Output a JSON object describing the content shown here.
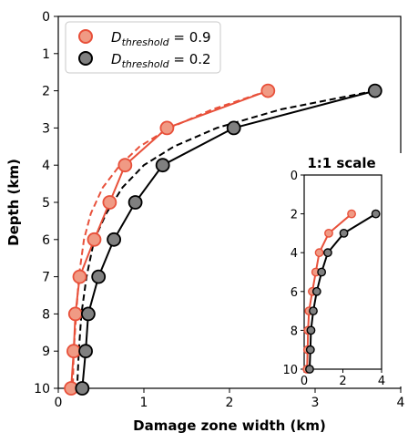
{
  "chart_data": {
    "type": "line",
    "xlabel": "Damage zone width (km)",
    "ylabel": "Depth (km)",
    "xlim": [
      0,
      4
    ],
    "ylim": [
      10,
      0
    ],
    "y_inverted": true,
    "x_ticks": [
      "0",
      "1",
      "2",
      "3",
      "4"
    ],
    "y_ticks": [
      "0",
      "1",
      "2",
      "3",
      "4",
      "5",
      "6",
      "7",
      "8",
      "9",
      "10"
    ],
    "grid": false,
    "legend_position": "top-left",
    "series": [
      {
        "name_main": "D",
        "name_sub": "threshold",
        "name_value": " = 0.9",
        "color": "#e8503a",
        "fill": "#f09a84",
        "marker": "circle",
        "x": [
          2.45,
          1.27,
          0.78,
          0.6,
          0.42,
          0.25,
          0.2,
          0.18,
          0.15
        ],
        "y": [
          2,
          3,
          4,
          5,
          6,
          7,
          8,
          9,
          10
        ]
      },
      {
        "name_main": "D",
        "name_sub": "threshold",
        "name_value": " = 0.2",
        "color": "#000000",
        "fill": "#808080",
        "marker": "circle",
        "x": [
          3.7,
          2.05,
          1.22,
          0.9,
          0.65,
          0.47,
          0.35,
          0.32,
          0.28
        ],
        "y": [
          2,
          3,
          4,
          5,
          6,
          7,
          8,
          9,
          10
        ]
      }
    ],
    "fit_lines": [
      {
        "style": "dashed",
        "color": "#e8503a",
        "x": [
          2.45,
          1.8,
          1.3,
          0.95,
          0.72,
          0.52,
          0.38,
          0.3,
          0.24,
          0.21,
          0.18,
          0.17
        ],
        "y": [
          2,
          2.5,
          3,
          3.5,
          4,
          4.6,
          5.3,
          6,
          7,
          8,
          9,
          10
        ]
      },
      {
        "style": "dashed",
        "color": "#000000",
        "x": [
          3.7,
          2.6,
          1.85,
          1.35,
          1.0,
          0.75,
          0.56,
          0.42,
          0.33,
          0.27,
          0.24,
          0.22
        ],
        "y": [
          2,
          2.5,
          3,
          3.5,
          4,
          4.6,
          5.3,
          6,
          7,
          8,
          9,
          10
        ]
      }
    ],
    "inset": {
      "title": "1:1 scale",
      "xlim": [
        0,
        4
      ],
      "ylim": [
        10,
        0
      ],
      "x_ticks": [
        "0",
        "2",
        "4"
      ],
      "y_ticks": [
        "0",
        "2",
        "4",
        "6",
        "8",
        "10"
      ]
    }
  }
}
